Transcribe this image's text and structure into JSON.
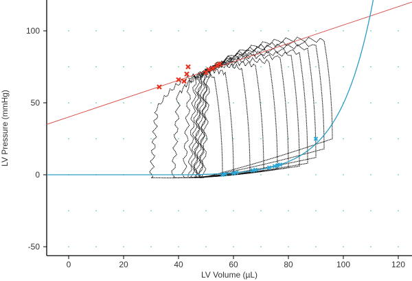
{
  "chart_data": {
    "type": "scatter",
    "title": "",
    "xlabel": "LV Volume (µL)",
    "ylabel": "LV Pressure (mmHg)",
    "xlim": [
      -8,
      125
    ],
    "ylim": [
      -55,
      120
    ],
    "x_ticks": [
      0,
      20,
      40,
      60,
      80,
      100,
      120
    ],
    "y_ticks": [
      -50,
      0,
      50,
      100
    ],
    "x_tick_labels": [
      "0",
      "20",
      "40",
      "60",
      "80",
      "100",
      "120"
    ],
    "y_tick_labels": [
      "-50",
      "0",
      "50",
      "100"
    ],
    "grid": "dotted",
    "legend": "none",
    "colors": {
      "loops": "#111111",
      "espvr_line": "#d9534f",
      "edpvr_curve": "#2a9cc4",
      "end_systolic_markers": "#e8331f",
      "end_diastolic_markers": "#2aa9d9",
      "grid_dots": "#5fd39a"
    },
    "series": [
      {
        "kind": "pv_loops",
        "loops": [
          {
            "ed_volume": 96,
            "es_volume": 51,
            "peak_pressure": 97,
            "ed_pressure": 25,
            "es_pressure": 72
          },
          {
            "ed_volume": 93,
            "es_volume": 50,
            "peak_pressure": 94,
            "ed_pressure": 18,
            "es_pressure": 71
          },
          {
            "ed_volume": 90,
            "es_volume": 50,
            "peak_pressure": 92,
            "ed_pressure": 12,
            "es_pressure": 70
          },
          {
            "ed_volume": 87,
            "es_volume": 49,
            "peak_pressure": 89,
            "ed_pressure": 8,
            "es_pressure": 69
          },
          {
            "ed_volume": 84,
            "es_volume": 48,
            "peak_pressure": 87,
            "ed_pressure": 6,
            "es_pressure": 68
          },
          {
            "ed_volume": 80,
            "es_volume": 48,
            "peak_pressure": 85,
            "ed_pressure": 5,
            "es_pressure": 68
          },
          {
            "ed_volume": 76,
            "es_volume": 47,
            "peak_pressure": 82,
            "ed_pressure": 4,
            "es_pressure": 67
          },
          {
            "ed_volume": 71,
            "es_volume": 46,
            "peak_pressure": 80,
            "ed_pressure": 3,
            "es_pressure": 66
          },
          {
            "ed_volume": 66,
            "es_volume": 44,
            "peak_pressure": 78,
            "ed_pressure": 2,
            "es_pressure": 63
          },
          {
            "ed_volume": 60,
            "es_volume": 40,
            "peak_pressure": 75,
            "ed_pressure": 1,
            "es_pressure": 55
          },
          {
            "ed_volume": 56,
            "es_volume": 32,
            "peak_pressure": 72,
            "ed_pressure": 0,
            "es_pressure": 45
          }
        ]
      },
      {
        "kind": "esp_points",
        "x": [
          33,
          40,
          42,
          43,
          43.5,
          50,
          51,
          52.5,
          54,
          55
        ],
        "y": [
          61,
          66,
          65,
          70,
          75,
          71,
          73,
          74,
          76,
          77
        ]
      },
      {
        "kind": "edp_points",
        "x": [
          56,
          57,
          60,
          61,
          67,
          68,
          73,
          75,
          76,
          77,
          90
        ],
        "y": [
          0,
          0.5,
          1,
          1.5,
          3,
          3.5,
          5,
          6,
          6.5,
          7,
          25
        ]
      },
      {
        "kind": "espvr_line",
        "x": [
          -8,
          125
        ],
        "y": [
          35,
          120
        ]
      },
      {
        "kind": "edpvr_curve",
        "x0": 45,
        "a": 0.55,
        "k": 0.082,
        "xmin": -8,
        "xmax": 125
      }
    ]
  }
}
